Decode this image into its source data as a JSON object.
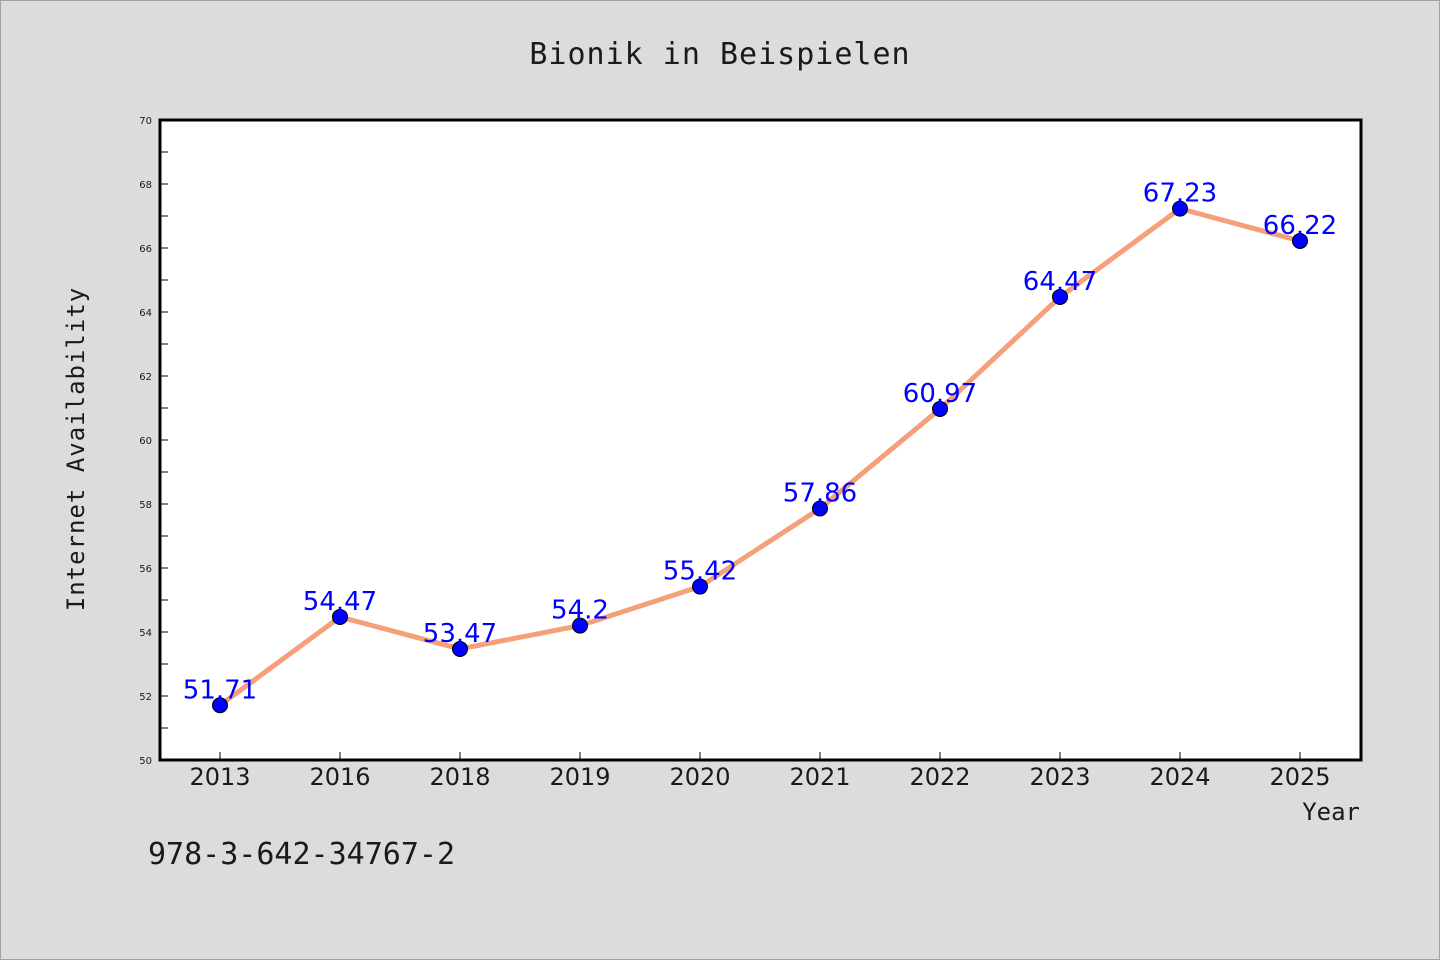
{
  "chart_data": {
    "type": "line",
    "title": "Bionik in Beispielen",
    "xlabel": "Year",
    "ylabel": "Internet Availability",
    "categories": [
      "2013",
      "2016",
      "2018",
      "2019",
      "2020",
      "2021",
      "2022",
      "2023",
      "2024",
      "2025"
    ],
    "series": [
      {
        "values": [
          51.71,
          54.47,
          53.47,
          54.2,
          55.42,
          57.86,
          60.97,
          64.47,
          67.23,
          66.22
        ],
        "data_labels": [
          "51.71",
          "54.47",
          "53.47",
          "54.2",
          "55.42",
          "57.86",
          "60.97",
          "64.47",
          "67.23",
          "66.22"
        ]
      }
    ],
    "ylim": [
      50,
      70
    ],
    "yticks": [
      "50",
      "52",
      "54",
      "56",
      "58",
      "60",
      "62",
      "64",
      "66",
      "68",
      "70"
    ],
    "grid": false,
    "colors": {
      "line": "#f5a07a",
      "marker": "#0000ff",
      "data_label": "#0000ff",
      "background": "#dcdcdc",
      "plot_background": "#ffffff"
    }
  },
  "footer_text": "978-3-642-34767-2"
}
